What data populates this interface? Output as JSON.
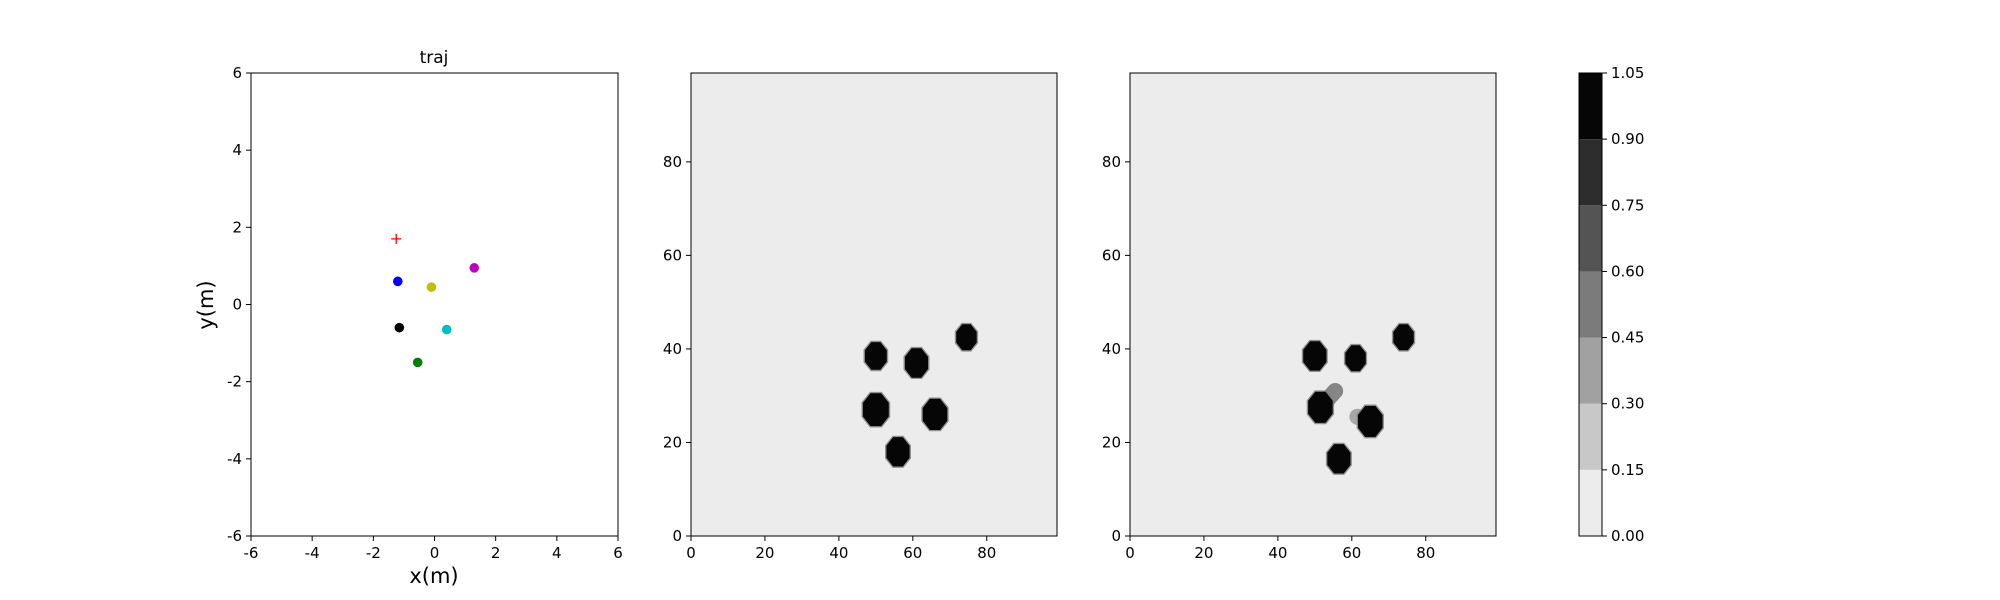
{
  "chart_data": [
    {
      "type": "scatter",
      "title": "traj",
      "xlabel": "x(m)",
      "ylabel": "y(m)",
      "xlim": [
        -6,
        6
      ],
      "ylim": [
        -6,
        6
      ],
      "xticks": [
        -6,
        -4,
        -2,
        0,
        2,
        4,
        6
      ],
      "yticks": [
        -6,
        -4,
        -2,
        0,
        2,
        4,
        6
      ],
      "grid": false,
      "points": [
        {
          "x": -1.2,
          "y": 0.6,
          "color": "#0000ff",
          "marker": "circle"
        },
        {
          "x": -0.1,
          "y": 0.45,
          "color": "#bfbf00",
          "marker": "circle"
        },
        {
          "x": 1.3,
          "y": 0.95,
          "color": "#bf00bf",
          "marker": "circle"
        },
        {
          "x": -1.15,
          "y": -0.6,
          "color": "#000000",
          "marker": "circle"
        },
        {
          "x": 0.4,
          "y": -0.65,
          "color": "#00bfbf",
          "marker": "circle"
        },
        {
          "x": -0.55,
          "y": -1.5,
          "color": "#008000",
          "marker": "circle"
        }
      ],
      "goal": {
        "x": -1.25,
        "y": 1.7,
        "color": "#ff0000",
        "marker": "plus"
      }
    },
    {
      "type": "heatmap",
      "xlim": [
        0,
        99
      ],
      "ylim": [
        0,
        99
      ],
      "xticks": [
        0,
        20,
        40,
        60,
        80
      ],
      "yticks": [
        0,
        20,
        40,
        60,
        80
      ],
      "background_value": 0.0,
      "blobs": [
        {
          "x": 50,
          "y": 38.5,
          "r": 3.2,
          "value": 1.0
        },
        {
          "x": 61,
          "y": 37,
          "r": 3.4,
          "value": 1.0
        },
        {
          "x": 74.5,
          "y": 42.5,
          "r": 3.0,
          "value": 1.0
        },
        {
          "x": 50,
          "y": 27,
          "r": 3.8,
          "value": 1.0
        },
        {
          "x": 66,
          "y": 26,
          "r": 3.6,
          "value": 1.0
        },
        {
          "x": 56,
          "y": 18,
          "r": 3.4,
          "value": 1.0
        }
      ]
    },
    {
      "type": "heatmap",
      "xlim": [
        0,
        99
      ],
      "ylim": [
        0,
        99
      ],
      "xticks": [
        0,
        20,
        40,
        60,
        80
      ],
      "yticks": [
        0,
        20,
        40,
        60,
        80
      ],
      "background_value": 0.0,
      "blobs": [
        {
          "x": 50,
          "y": 38.5,
          "r": 3.4,
          "value": 1.0
        },
        {
          "x": 61,
          "y": 38,
          "r": 3.0,
          "value": 1.0
        },
        {
          "x": 74,
          "y": 42.5,
          "r": 3.0,
          "value": 1.0
        },
        {
          "x": 51.5,
          "y": 27.5,
          "r": 3.6,
          "value": 1.0
        },
        {
          "x": 65,
          "y": 24.5,
          "r": 3.6,
          "value": 1.0
        },
        {
          "x": 56.5,
          "y": 16.5,
          "r": 3.4,
          "value": 1.0
        }
      ],
      "trails": [
        {
          "x1": 51.5,
          "y1": 27.5,
          "x2": 55.5,
          "y2": 31,
          "value": 0.45
        },
        {
          "x1": 65,
          "y1": 24.5,
          "x2": 61.5,
          "y2": 25.5,
          "value": 0.3
        }
      ]
    },
    {
      "type": "colorbar",
      "levels": [
        0.0,
        0.15,
        0.3,
        0.45,
        0.6,
        0.75,
        0.9,
        1.05
      ],
      "tick_labels": [
        "0.00",
        "0.15",
        "0.30",
        "0.45",
        "0.60",
        "0.75",
        "0.90",
        "1.05"
      ],
      "colors": [
        "#ececec",
        "#c8c8c8",
        "#a1a1a1",
        "#7b7b7b",
        "#545454",
        "#2d2d2d",
        "#060606"
      ]
    }
  ]
}
